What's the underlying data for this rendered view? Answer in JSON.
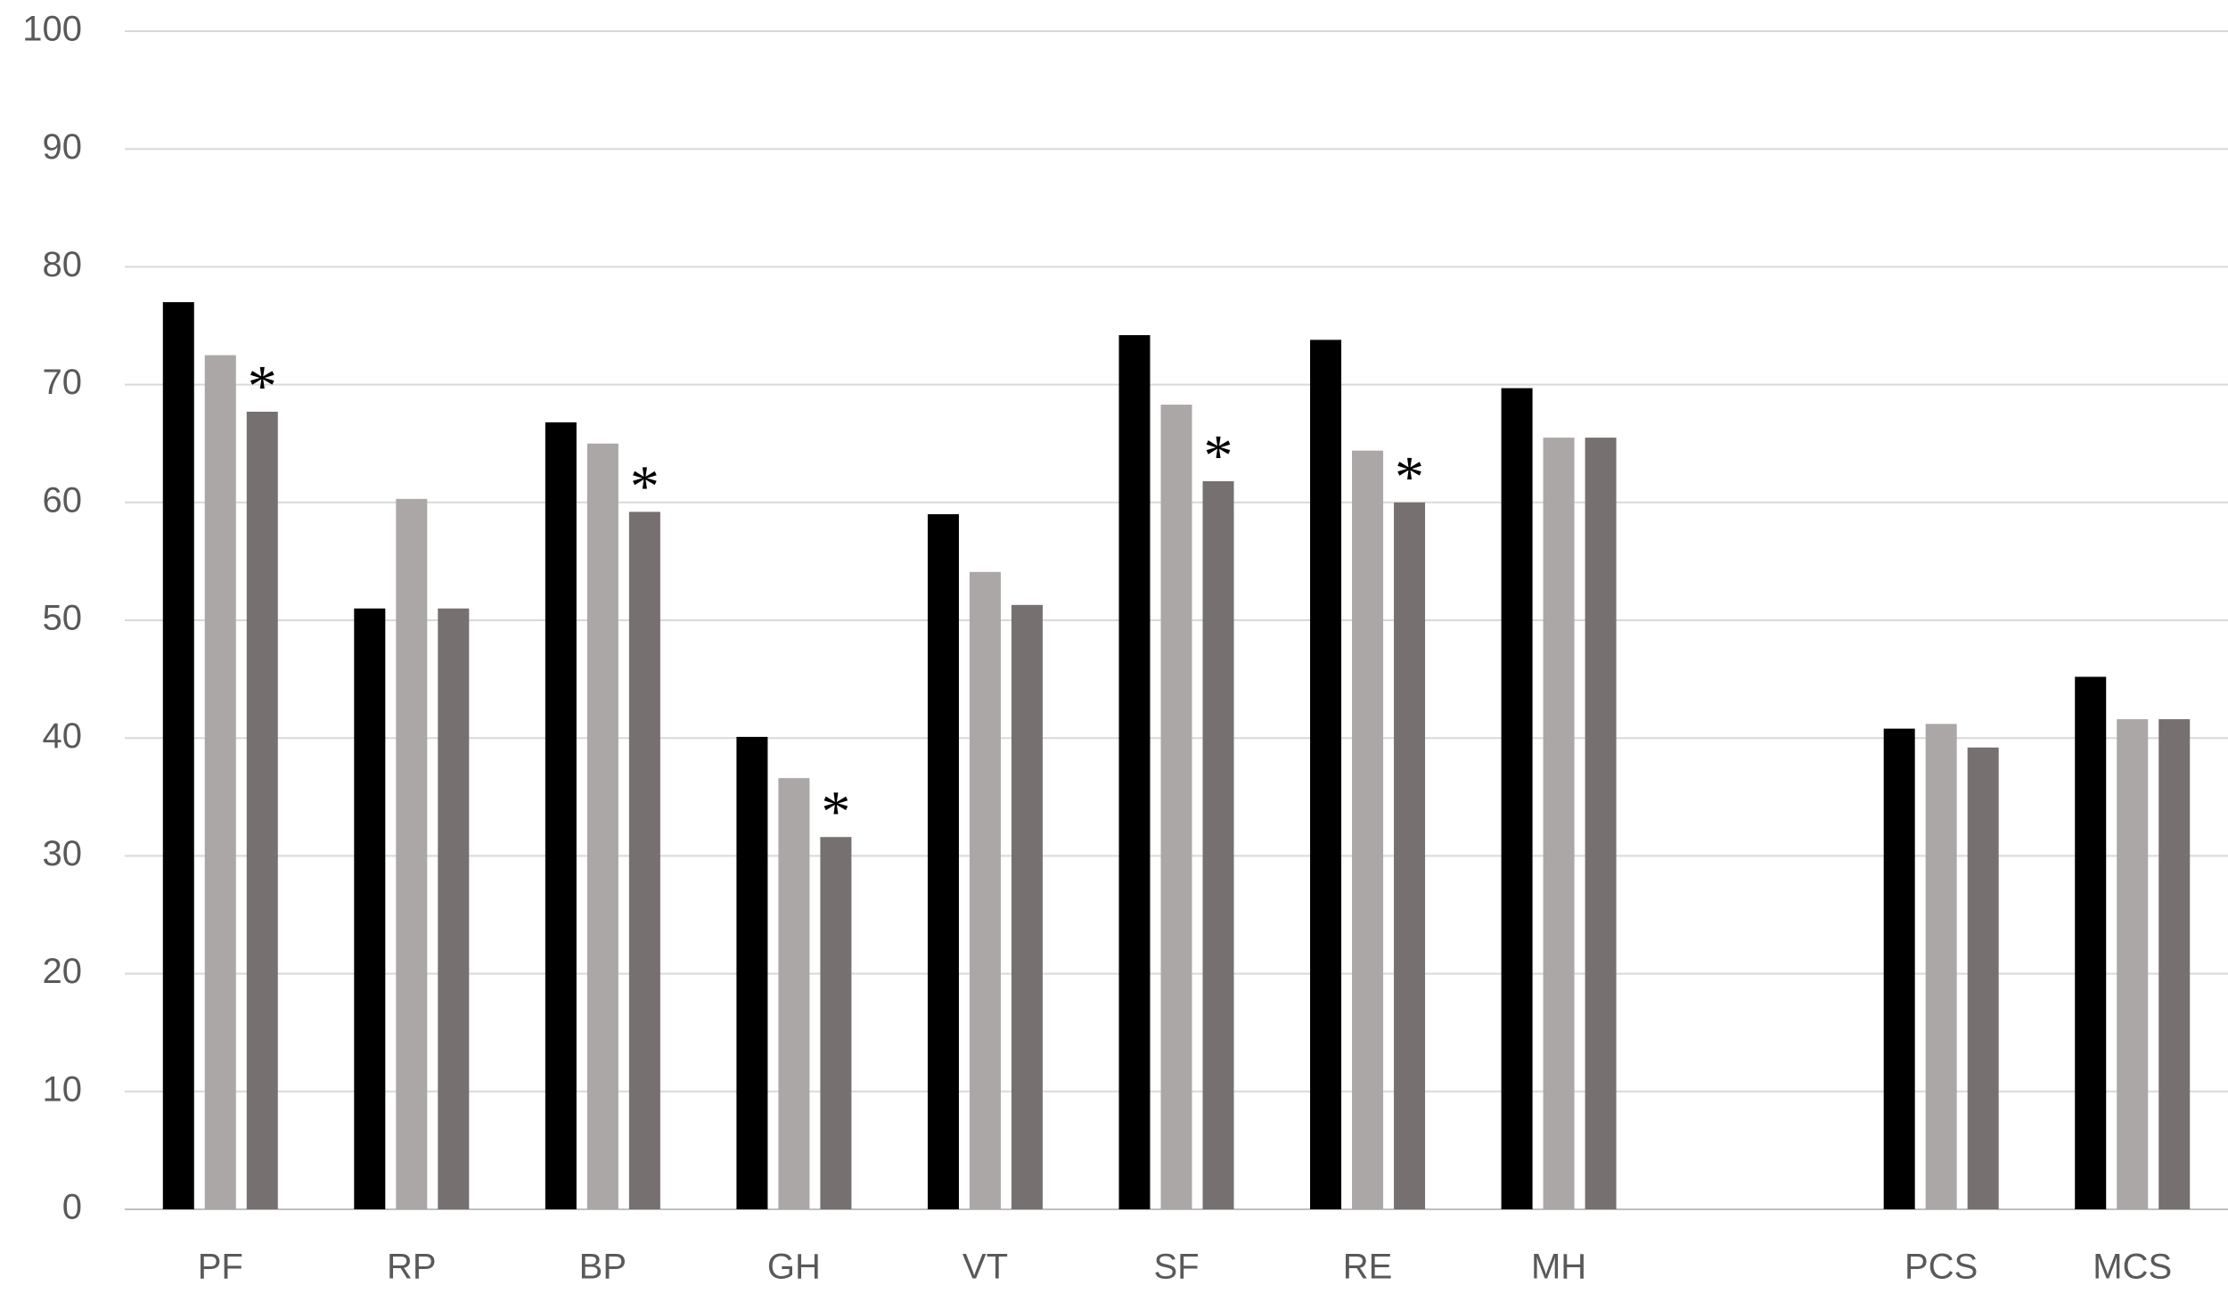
{
  "chart_data": {
    "type": "bar",
    "categories": [
      "PF",
      "RP",
      "BP",
      "GH",
      "VT",
      "SF",
      "RE",
      "MH",
      null,
      "PCS",
      "MCS"
    ],
    "series": [
      {
        "color": "#000000",
        "values": [
          77,
          51,
          66.8,
          40.1,
          59,
          74.2,
          73.8,
          69.7,
          null,
          40.8,
          45.2
        ]
      },
      {
        "color": "#aba7a7",
        "values": [
          72.5,
          60.3,
          65,
          36.6,
          54.1,
          68.3,
          64.4,
          65.5,
          null,
          41.2,
          41.6
        ]
      },
      {
        "color": "#767070",
        "values": [
          67.7,
          51,
          59.2,
          31.6,
          51.3,
          61.8,
          60,
          65.5,
          null,
          39.2,
          41.6
        ]
      }
    ],
    "annotations": [
      "*",
      null,
      "*",
      "*",
      null,
      "*",
      "*",
      null,
      null,
      null,
      null
    ],
    "ylim": [
      0,
      100
    ],
    "yticks": [
      0,
      10,
      20,
      30,
      40,
      50,
      60,
      70,
      80,
      90,
      100
    ],
    "grid": true
  }
}
